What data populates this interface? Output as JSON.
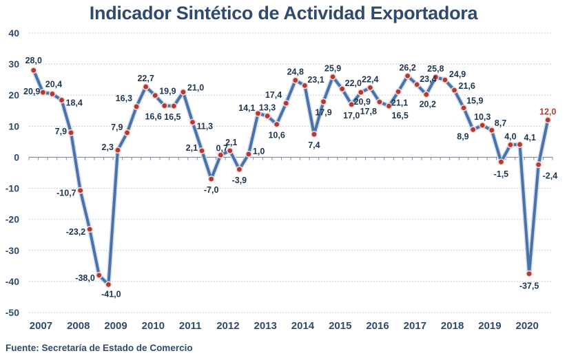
{
  "chart_data": {
    "type": "line",
    "title": "Indicador Sintético de Actividad Exportadora",
    "source": "Fuente: Secretaría de Estado de Comercio",
    "xlabel": "",
    "ylabel": "",
    "ylim": [
      -50,
      40
    ],
    "yticks": [
      40,
      30,
      20,
      10,
      0,
      -10,
      -20,
      -30,
      -40,
      -50
    ],
    "grid": true,
    "legend": "none",
    "categories": [
      "2007",
      "2008",
      "2009",
      "2010",
      "2011",
      "2012",
      "2013",
      "2014",
      "2015",
      "2016",
      "2017",
      "2018",
      "2019",
      "2020"
    ],
    "periods_per_category": 4,
    "series": [
      {
        "name": "Indicador Sintético de Actividad Exportadora",
        "color": "#4a72a8",
        "marker_color": "#b03a35",
        "values": [
          28.0,
          20.9,
          20.4,
          18.4,
          7.9,
          -10.7,
          -23.2,
          -38.0,
          -41.0,
          2.3,
          7.9,
          16.3,
          22.7,
          19.9,
          16.6,
          16.5,
          21.0,
          11.3,
          2.1,
          -7.0,
          0.7,
          2.1,
          -3.9,
          1.0,
          14.1,
          13.3,
          10.6,
          17.4,
          24.8,
          23.1,
          7.4,
          17.9,
          25.9,
          22.0,
          17.0,
          20.9,
          22.4,
          17.8,
          16.5,
          21.1,
          26.2,
          23.4,
          20.2,
          25.8,
          24.9,
          21.6,
          15.9,
          8.9,
          10.3,
          8.7,
          -1.5,
          4.0,
          4.1,
          -37.5,
          -2.4,
          12.0
        ],
        "labels": [
          "28,0",
          "20,9",
          "20,4",
          "18,4",
          "7,9",
          "-10,7",
          "-23,2",
          "-38,0",
          "-41,0",
          "2,3",
          "7,9",
          "16,3",
          "22,7",
          "19,9",
          "16,6",
          "16,5",
          "21,0",
          "11,3",
          "2,1",
          "-7,0",
          "0,7",
          "2,1",
          "-3,9",
          "1,0",
          "14,1",
          "13,3",
          "10,6",
          "17,4",
          "24,8",
          "23,1",
          "7,4",
          "17,9",
          "25,9",
          "22,0",
          "17,0",
          "20,9",
          "22,4",
          "17,8",
          "16,5",
          "21,1",
          "26,2",
          "23,4",
          "20,2",
          "25,8",
          "24,9",
          "21,6",
          "15,9",
          "8,9",
          "10,3",
          "8,7",
          "-1,5",
          "4,0",
          "4,1",
          "-37,5",
          "-2,4",
          "12,0"
        ],
        "highlight_last_color": "#c0392b"
      }
    ]
  }
}
